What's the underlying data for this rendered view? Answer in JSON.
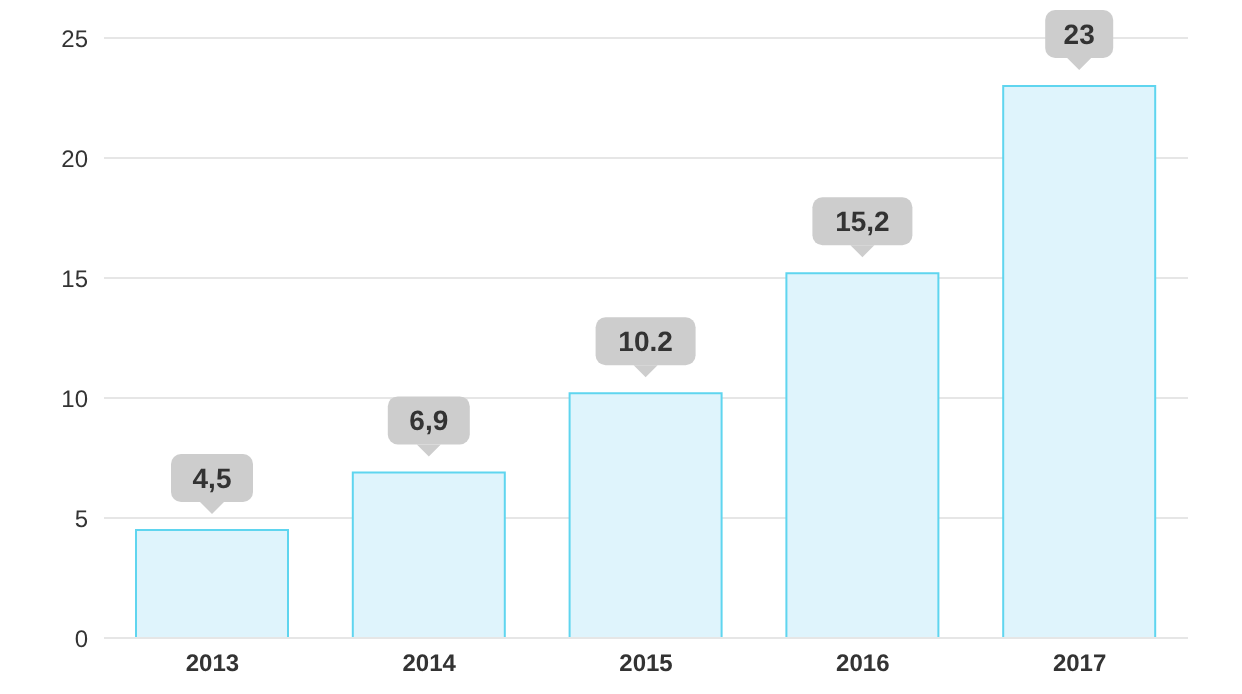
{
  "chart_data": {
    "type": "bar",
    "categories": [
      "2013",
      "2014",
      "2015",
      "2016",
      "2017"
    ],
    "values": [
      4.5,
      6.9,
      10.2,
      15.2,
      23
    ],
    "value_labels": [
      "4,5",
      "6,9",
      "10.2",
      "15,2",
      "23"
    ],
    "color": "#dff4fc",
    "ylim": [
      0,
      25
    ],
    "yticks": [
      0,
      5,
      10,
      15,
      20,
      25
    ],
    "grid": "y",
    "legend": false
  }
}
